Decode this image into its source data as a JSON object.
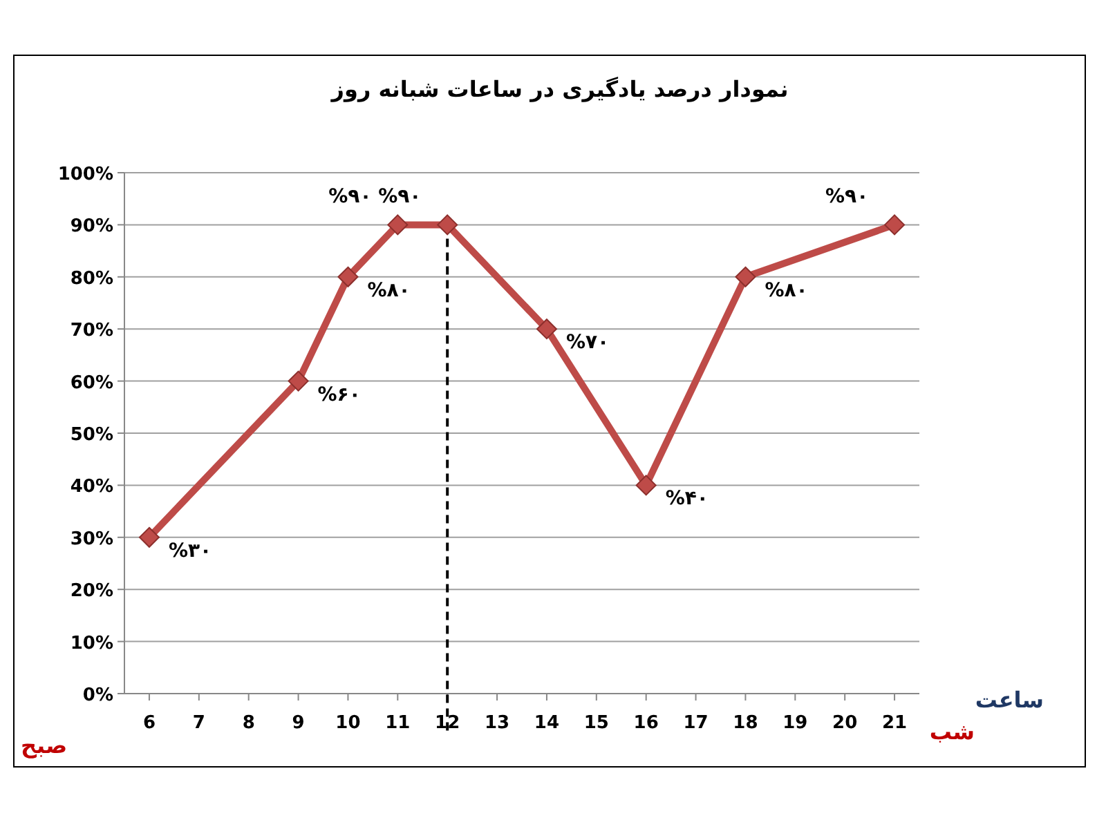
{
  "chart_data": {
    "type": "line",
    "title": "نمودار درصد یادگیری در ساعات شبانه روز",
    "xlabel": "ساعت",
    "annotations": [
      "صبح",
      "شب"
    ],
    "x": [
      6,
      9,
      10,
      11,
      12,
      14,
      16,
      18,
      21
    ],
    "series": [
      {
        "color": "#be4b48",
        "values": [
          30,
          60,
          80,
          90,
          90,
          70,
          40,
          80,
          90
        ],
        "value_labels": [
          "%۳۰",
          "%۶۰",
          "%۸۰",
          "%۹۰",
          "%۹۰",
          "%۷۰",
          "%۴۰",
          "%۸۰",
          "%۹۰"
        ]
      }
    ],
    "xlim": [
      5.5,
      21.5
    ],
    "xticks": [
      6,
      7,
      8,
      9,
      10,
      11,
      12,
      13,
      14,
      15,
      16,
      17,
      18,
      19,
      20,
      21
    ],
    "ylim": [
      0,
      100
    ],
    "yticks": [
      {
        "value": 0,
        "label": "0%"
      },
      {
        "value": 10,
        "label": "10%"
      },
      {
        "value": 20,
        "label": "20%"
      },
      {
        "value": 30,
        "label": "30%"
      },
      {
        "value": 40,
        "label": "40%"
      },
      {
        "value": 50,
        "label": "50%"
      },
      {
        "value": 60,
        "label": "60%"
      },
      {
        "value": 70,
        "label": "70%"
      },
      {
        "value": 80,
        "label": "80%"
      },
      {
        "value": 90,
        "label": "90%"
      },
      {
        "value": 100,
        "label": "100%"
      }
    ],
    "ref_lines": [
      {
        "axis": "x",
        "value": 12,
        "line_style": "dashed",
        "color": "#000000"
      }
    ],
    "grid": "y",
    "marker": "diamond",
    "line_style": "solid"
  }
}
